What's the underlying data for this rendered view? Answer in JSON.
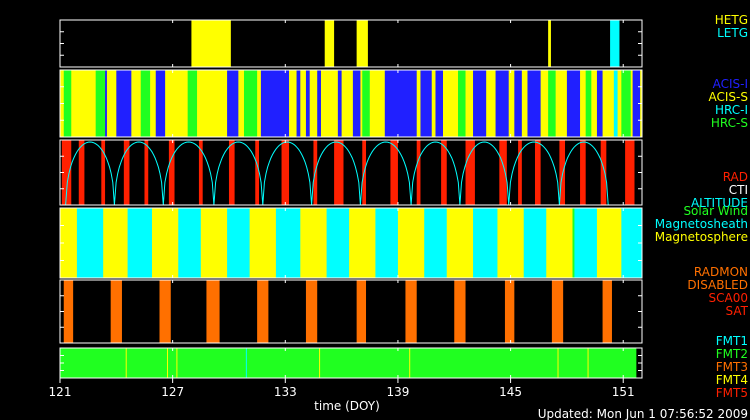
{
  "chart_data": {
    "type": "timeline",
    "xlabel": "time (DOY)",
    "xlim": [
      121,
      152
    ],
    "xticks": [
      121,
      127,
      133,
      139,
      145,
      151
    ],
    "updated": "Updated: Mon Jun  1 07:56:52 2009",
    "colors": {
      "yellow": "#ffff00",
      "cyan": "#00ffff",
      "blue": "#2020ff",
      "green": "#20ff20",
      "red": "#ff2000",
      "orange": "#ff7000",
      "white": "#ffffff",
      "black": "#000000"
    },
    "panels": [
      {
        "id": "grating",
        "legend": [
          {
            "label": "HETG",
            "color": "#ffff00"
          },
          {
            "label": "LETG",
            "color": "#00ffff"
          }
        ],
        "base": null,
        "segments": [
          [
            128.0,
            130.1,
            "#ffff00"
          ],
          [
            135.1,
            135.6,
            "#ffff00"
          ],
          [
            136.8,
            137.4,
            "#ffff00"
          ],
          [
            147.0,
            147.15,
            "#ffff00"
          ],
          [
            150.3,
            150.8,
            "#00ffff"
          ]
        ]
      },
      {
        "id": "instrument",
        "legend": [
          {
            "label": "ACIS-I",
            "color": "#2020ff"
          },
          {
            "label": "ACIS-S",
            "color": "#ffff00"
          },
          {
            "label": "HRC-I",
            "color": "#00ffff"
          },
          {
            "label": "HRC-S",
            "color": "#20ff20"
          }
        ],
        "base": "#ffff00",
        "segments": [
          [
            121.2,
            121.6,
            "#20ff20"
          ],
          [
            122.9,
            123.4,
            "#20ff20"
          ],
          [
            123.4,
            123.5,
            "#2020ff"
          ],
          [
            124.0,
            124.8,
            "#2020ff"
          ],
          [
            125.3,
            125.8,
            "#20ff20"
          ],
          [
            126.1,
            126.6,
            "#2020ff"
          ],
          [
            127.8,
            128.3,
            "#20ff20"
          ],
          [
            129.9,
            130.5,
            "#2020ff"
          ],
          [
            130.8,
            131.5,
            "#20ff20"
          ],
          [
            131.7,
            133.2,
            "#2020ff"
          ],
          [
            133.6,
            133.8,
            "#2020ff"
          ],
          [
            134.1,
            134.3,
            "#2020ff"
          ],
          [
            134.7,
            134.9,
            "#2020ff"
          ],
          [
            135.8,
            136.0,
            "#2020ff"
          ],
          [
            136.6,
            137.0,
            "#2020ff"
          ],
          [
            137.1,
            137.5,
            "#20ff20"
          ],
          [
            138.3,
            140.0,
            "#2020ff"
          ],
          [
            140.2,
            140.8,
            "#2020ff"
          ],
          [
            141.0,
            141.4,
            "#2020ff"
          ],
          [
            142.2,
            142.6,
            "#20ff20"
          ],
          [
            143.0,
            143.7,
            "#2020ff"
          ],
          [
            144.2,
            144.9,
            "#2020ff"
          ],
          [
            145.2,
            145.6,
            "#2020ff"
          ],
          [
            145.9,
            146.6,
            "#2020ff"
          ],
          [
            147.0,
            147.4,
            "#20ff20"
          ],
          [
            148.0,
            148.7,
            "#2020ff"
          ],
          [
            149.0,
            149.3,
            "#20ff20"
          ],
          [
            149.6,
            149.9,
            "#2020ff"
          ],
          [
            150.5,
            150.7,
            "#00ffff"
          ],
          [
            150.9,
            151.4,
            "#20ff20"
          ],
          [
            151.5,
            151.9,
            "#2020ff"
          ]
        ]
      },
      {
        "id": "radiation",
        "legend": [
          {
            "label": "RAD",
            "color": "#ff2000"
          },
          {
            "label": "CTI",
            "color": "#ffffff"
          },
          {
            "label": "ALTITUDE",
            "color": "#00ffff"
          }
        ],
        "base": null,
        "segments": [
          [
            121.1,
            121.6,
            "#ff2000"
          ],
          [
            122.0,
            122.3,
            "#ff2000"
          ],
          [
            123.2,
            123.4,
            "#ff2000"
          ],
          [
            124.4,
            124.7,
            "#ff2000"
          ],
          [
            125.5,
            125.7,
            "#ff2000"
          ],
          [
            126.8,
            127.1,
            "#ff2000"
          ],
          [
            128.4,
            128.6,
            "#ff2000"
          ],
          [
            130.0,
            130.3,
            "#ff2000"
          ],
          [
            131.4,
            131.6,
            "#ff2000"
          ],
          [
            132.8,
            133.2,
            "#ff2000"
          ],
          [
            134.5,
            134.7,
            "#ff2000"
          ],
          [
            135.6,
            136.1,
            "#ff2000"
          ],
          [
            137.1,
            137.3,
            "#ff2000"
          ],
          [
            138.6,
            139.0,
            "#ff2000"
          ],
          [
            140.0,
            140.2,
            "#ff2000"
          ],
          [
            141.3,
            141.6,
            "#ff2000"
          ],
          [
            142.6,
            143.1,
            "#ff2000"
          ],
          [
            144.4,
            144.8,
            "#ff2000"
          ],
          [
            145.4,
            145.6,
            "#ff2000"
          ],
          [
            146.3,
            146.6,
            "#ff2000"
          ],
          [
            147.6,
            147.9,
            "#ff2000"
          ],
          [
            148.7,
            149.0,
            "#ff2000"
          ],
          [
            149.8,
            150.1,
            "#ff2000"
          ],
          [
            151.1,
            151.6,
            "#ff2000"
          ]
        ],
        "altitude_perigees": [
          121.3,
          123.9,
          126.5,
          129.2,
          131.8,
          134.4,
          137.0,
          139.7,
          142.3,
          144.9,
          147.6,
          150.2
        ]
      },
      {
        "id": "environment",
        "legend": [
          {
            "label": "Solar Wind",
            "color": "#20ff20"
          },
          {
            "label": "Magnetosheath",
            "color": "#00ffff"
          },
          {
            "label": "Magnetosphere",
            "color": "#ffff00"
          }
        ],
        "base": "#ffff00",
        "segments": [
          [
            121.9,
            123.3,
            "#00ffff"
          ],
          [
            124.6,
            125.9,
            "#00ffff"
          ],
          [
            127.3,
            128.5,
            "#00ffff"
          ],
          [
            129.9,
            131.1,
            "#00ffff"
          ],
          [
            132.5,
            133.8,
            "#00ffff"
          ],
          [
            135.2,
            136.4,
            "#00ffff"
          ],
          [
            137.8,
            139.0,
            "#00ffff"
          ],
          [
            140.4,
            141.6,
            "#00ffff"
          ],
          [
            143.0,
            144.3,
            "#00ffff"
          ],
          [
            145.7,
            146.9,
            "#00ffff"
          ],
          [
            148.3,
            149.6,
            "#00ffff"
          ],
          [
            150.9,
            152.0,
            "#00ffff"
          ],
          [
            148.3,
            148.4,
            "#20ff20"
          ]
        ]
      },
      {
        "id": "radmon",
        "legend": [
          {
            "label": "RADMON",
            "color": "#ff7000"
          },
          {
            "label": "DISABLED",
            "color": "#ff7000"
          },
          {
            "label": "SCA00",
            "color": "#ff2000"
          },
          {
            "label": "SAT",
            "color": "#ff2000"
          }
        ],
        "base": null,
        "segments": [
          [
            121.2,
            121.7,
            "#ff7000"
          ],
          [
            123.7,
            124.3,
            "#ff7000"
          ],
          [
            126.3,
            126.9,
            "#ff7000"
          ],
          [
            128.8,
            129.5,
            "#ff7000"
          ],
          [
            131.5,
            132.1,
            "#ff7000"
          ],
          [
            134.1,
            134.7,
            "#ff7000"
          ],
          [
            136.8,
            137.3,
            "#ff7000"
          ],
          [
            139.4,
            140.0,
            "#ff7000"
          ],
          [
            142.0,
            142.6,
            "#ff7000"
          ],
          [
            144.7,
            145.2,
            "#ff7000"
          ],
          [
            147.2,
            147.8,
            "#ff7000"
          ],
          [
            149.9,
            150.4,
            "#ff7000"
          ]
        ]
      },
      {
        "id": "format",
        "legend": [
          {
            "label": "FMT1",
            "color": "#00ffff"
          },
          {
            "label": "FMT2",
            "color": "#20ff20"
          },
          {
            "label": "FMT3",
            "color": "#ff7000"
          },
          {
            "label": "FMT4",
            "color": "#ffff00"
          },
          {
            "label": "FMT5",
            "color": "#ff2000"
          }
        ],
        "base": null,
        "segments": [
          [
            121.0,
            151.7,
            "#20ff20"
          ],
          [
            124.5,
            124.55,
            "#ffff00"
          ],
          [
            126.7,
            126.75,
            "#ffff00"
          ],
          [
            127.2,
            127.25,
            "#ffff00"
          ],
          [
            130.9,
            130.95,
            "#00ffff"
          ],
          [
            134.8,
            134.85,
            "#ffff00"
          ],
          [
            139.6,
            139.65,
            "#ffff00"
          ],
          [
            147.5,
            147.55,
            "#ffff00"
          ],
          [
            149.1,
            149.15,
            "#ffff00"
          ]
        ]
      }
    ]
  }
}
